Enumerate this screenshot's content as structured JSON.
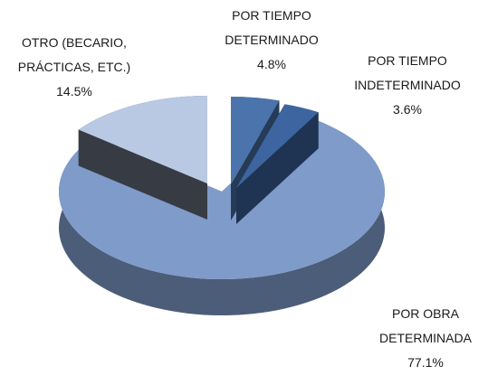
{
  "chart_data": {
    "type": "pie",
    "categories": [
      "POR TIEMPO DETERMINADO",
      "POR TIEMPO INDETERMINADO",
      "POR OBRA DETERMINADA",
      "OTRO (BECARIO, PRÁCTICAS, ETC.)"
    ],
    "values": [
      4.8,
      3.6,
      77.1,
      14.5
    ],
    "value_labels": [
      "4.8%",
      "3.6%",
      "77.1%",
      "14.5%"
    ],
    "colors": [
      "#4a74ab",
      "#3d66a0",
      "#7f9bc9",
      "#b9c9e3"
    ]
  }
}
